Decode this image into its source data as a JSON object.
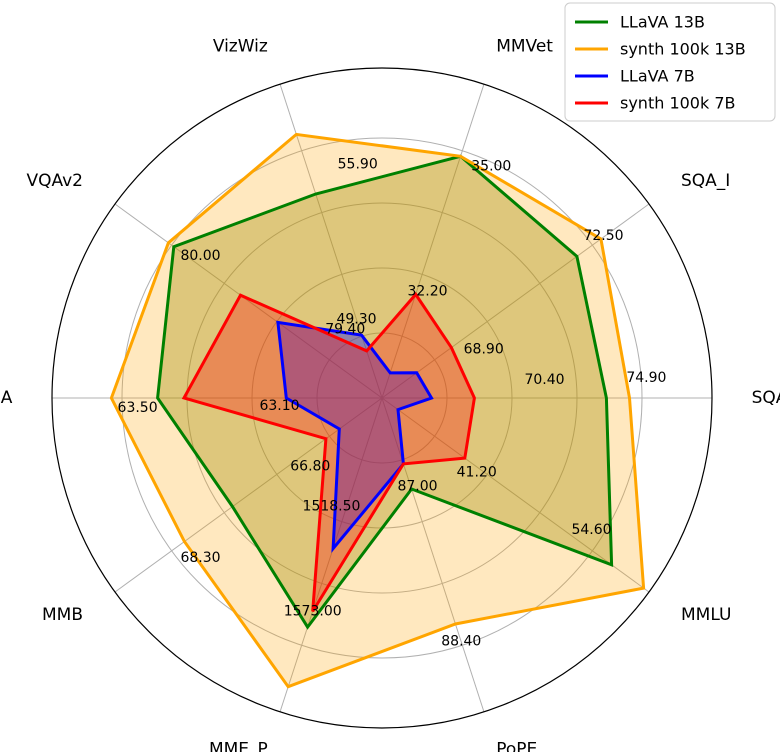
{
  "chart_data": {
    "type": "radar",
    "axes": [
      "SQA",
      "SQA_I",
      "MMVet",
      "VizWiz",
      "VQAv2",
      "GQA",
      "MMB",
      "MME_P",
      "PoPE",
      "MMLU"
    ],
    "series": [
      {
        "name": "LLaVA 13B",
        "color": "#008000",
        "fill": "#808000",
        "fill_opacity": 0.35,
        "values": [
          0.68,
          0.73,
          0.77,
          0.65,
          0.78,
          0.68,
          0.56,
          0.73,
          0.29,
          0.86
        ]
      },
      {
        "name": "synth 100k 13B",
        "color": "#FFA500",
        "fill": "#FFA500",
        "fill_opacity": 0.25,
        "values": [
          0.75,
          0.82,
          0.77,
          0.84,
          0.8,
          0.82,
          0.74,
          0.92,
          0.72,
          0.98
        ]
      },
      {
        "name": "LLaVA 7B",
        "color": "#0000FF",
        "fill": "#0000FF",
        "fill_opacity": 0.35,
        "values": [
          0.15,
          0.13,
          0.08,
          0.2,
          0.39,
          0.29,
          0.16,
          0.48,
          0.21,
          0.06
        ]
      },
      {
        "name": "synth 100k 7B",
        "color": "#FF0000",
        "fill": "#FF0000",
        "fill_opacity": 0.3,
        "values": [
          0.28,
          0.26,
          0.33,
          0.15,
          0.53,
          0.6,
          0.21,
          0.68,
          0.21,
          0.31
        ]
      }
    ],
    "tick_labels": [
      {
        "axis": "SQA",
        "values": [
          "70.40",
          "74.90"
        ]
      },
      {
        "axis": "SQA_I",
        "values": [
          "68.90",
          "72.50"
        ]
      },
      {
        "axis": "MMVet",
        "values": [
          "32.20",
          "35.00"
        ]
      },
      {
        "axis": "VizWiz",
        "values": [
          "49.30",
          "55.90"
        ]
      },
      {
        "axis": "VQAv2",
        "values": [
          "79.40",
          "80.00"
        ]
      },
      {
        "axis": "GQA",
        "values": [
          "63.10",
          "63.50"
        ]
      },
      {
        "axis": "MMB",
        "values": [
          "66.80",
          "68.30"
        ]
      },
      {
        "axis": "MME_P",
        "values": [
          "1518.50",
          "1573.00"
        ]
      },
      {
        "axis": "PoPE",
        "values": [
          "87.00",
          "88.40"
        ]
      },
      {
        "axis": "MMLU",
        "values": [
          "41.20",
          "54.60"
        ]
      }
    ],
    "grid": true,
    "legend_position": "top-right"
  }
}
